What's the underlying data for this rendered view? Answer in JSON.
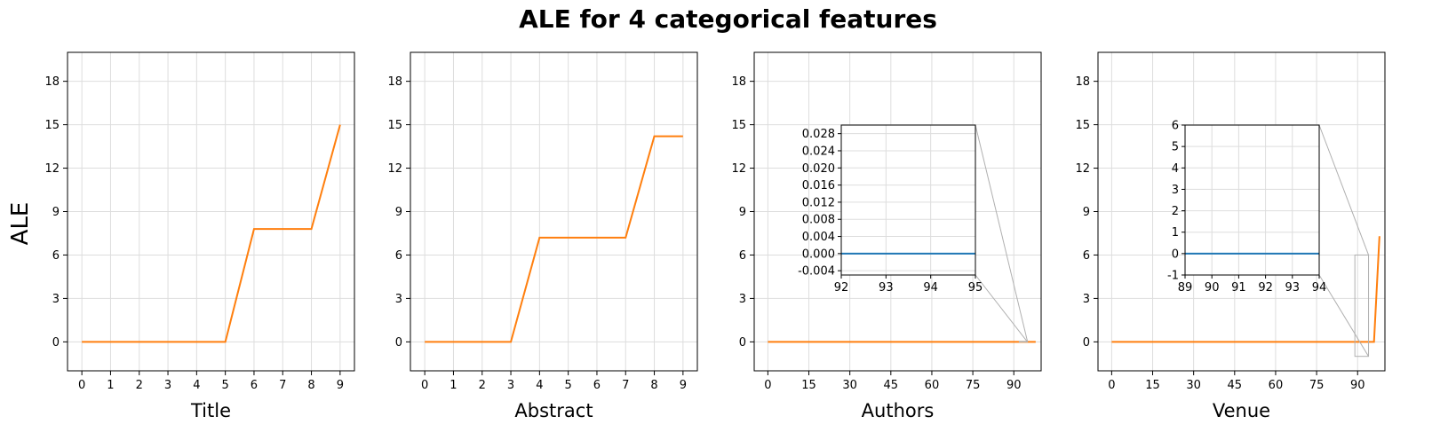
{
  "title": "ALE for 4 categorical features",
  "ylabel": "ALE",
  "colors": {
    "main_line": "#ff7f0e",
    "inset_line": "#1f77b4",
    "grid": "#dddddd",
    "connector": "#b0b0b0"
  },
  "chart_data": [
    {
      "type": "line",
      "xlabel": "Title",
      "xlim": [
        -0.5,
        9.5
      ],
      "ylim": [
        -2,
        20
      ],
      "xticks": [
        "0",
        "1",
        "2",
        "3",
        "4",
        "5",
        "6",
        "7",
        "8",
        "9"
      ],
      "yticks": [
        "0",
        "3",
        "6",
        "9",
        "12",
        "15",
        "18"
      ],
      "grid": true,
      "x": [
        0,
        1,
        2,
        3,
        4,
        5,
        6,
        7,
        8,
        9
      ],
      "y": [
        0,
        0,
        0,
        0,
        0,
        0,
        7.8,
        7.8,
        7.8,
        15.0
      ]
    },
    {
      "type": "line",
      "xlabel": "Abstract",
      "xlim": [
        -0.5,
        9.5
      ],
      "ylim": [
        -2,
        20
      ],
      "xticks": [
        "0",
        "1",
        "2",
        "3",
        "4",
        "5",
        "6",
        "7",
        "8",
        "9"
      ],
      "yticks": [
        "0",
        "3",
        "6",
        "9",
        "12",
        "15",
        "18"
      ],
      "grid": true,
      "x": [
        0,
        1,
        2,
        3,
        4,
        5,
        6,
        7,
        8,
        9
      ],
      "y": [
        0,
        0,
        0,
        0,
        7.2,
        7.2,
        7.2,
        7.2,
        14.2,
        14.2
      ]
    },
    {
      "type": "line",
      "xlabel": "Authors",
      "xlim": [
        -5,
        100
      ],
      "ylim": [
        -2,
        20
      ],
      "xticks": [
        "0",
        "15",
        "30",
        "45",
        "60",
        "75",
        "90"
      ],
      "yticks": [
        "0",
        "3",
        "6",
        "9",
        "12",
        "15",
        "18"
      ],
      "grid": true,
      "x": [
        0,
        98
      ],
      "y": [
        0,
        0
      ],
      "inset": {
        "xlim": [
          92,
          95
        ],
        "ylim": [
          -0.005,
          0.03
        ],
        "xticks": [
          "92",
          "93",
          "94",
          "95"
        ],
        "yticks": [
          "-0.004",
          "0.000",
          "0.004",
          "0.008",
          "0.012",
          "0.016",
          "0.020",
          "0.024",
          "0.028"
        ],
        "x": [
          92,
          95
        ],
        "y": [
          0,
          0
        ]
      }
    },
    {
      "type": "line",
      "xlabel": "Venue",
      "xlim": [
        -5,
        100
      ],
      "ylim": [
        -2,
        20
      ],
      "xticks": [
        "0",
        "15",
        "30",
        "45",
        "60",
        "75",
        "90"
      ],
      "yticks": [
        "0",
        "3",
        "6",
        "9",
        "12",
        "15",
        "18"
      ],
      "grid": true,
      "x": [
        0,
        96,
        98
      ],
      "y": [
        0,
        0,
        7.3
      ],
      "inset": {
        "xlim": [
          89,
          94
        ],
        "ylim": [
          -1,
          6
        ],
        "xticks": [
          "89",
          "90",
          "91",
          "92",
          "93",
          "94"
        ],
        "yticks": [
          "-1",
          "0",
          "1",
          "2",
          "3",
          "4",
          "5",
          "6"
        ],
        "x": [
          89,
          94
        ],
        "y": [
          0,
          0
        ]
      }
    }
  ]
}
